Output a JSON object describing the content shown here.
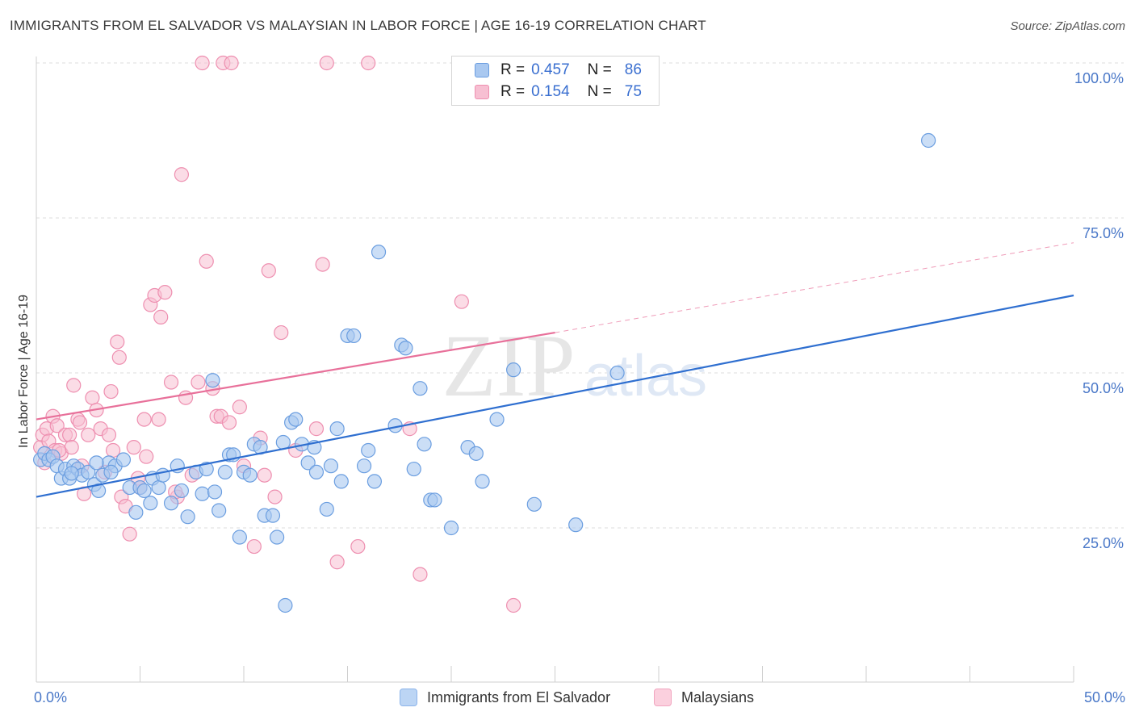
{
  "title": "IMMIGRANTS FROM EL SALVADOR VS MALAYSIAN IN LABOR FORCE | AGE 16-19 CORRELATION CHART",
  "source": "Source: ZipAtlas.com",
  "watermark": {
    "zip": "ZIP",
    "atlas": "atlas"
  },
  "colors": {
    "blue_fill": "#a9c8f0",
    "blue_stroke": "#6b9ee0",
    "blue_line": "#2f6fd0",
    "pink_fill": "#f7bfd2",
    "pink_stroke": "#ee8fb0",
    "pink_line": "#e8709a",
    "grid": "#dcdcdc",
    "axis_text": "#4a78c8"
  },
  "legend": {
    "rows": [
      {
        "r_label": "R =",
        "r_value": "0.457",
        "n_label": "N =",
        "n_value": "86",
        "color": "blue"
      },
      {
        "r_label": "R =",
        "r_value": "0.154",
        "n_label": "N =",
        "n_value": "75",
        "color": "pink"
      }
    ]
  },
  "bottom_legend": {
    "series1": "Immigrants from El Salvador",
    "series2": "Malaysians"
  },
  "chart_data": {
    "type": "scatter",
    "title": "IMMIGRANTS FROM EL SALVADOR VS MALAYSIAN IN LABOR FORCE | AGE 16-19 CORRELATION CHART",
    "xlabel": "",
    "ylabel": "In Labor Force | Age 16-19",
    "xlim": [
      0,
      50
    ],
    "ylim": [
      0,
      102
    ],
    "x_ticks": [
      "0.0%",
      "50.0%"
    ],
    "y_ticks": [
      {
        "value": 100,
        "label": "100.0%"
      },
      {
        "value": 75,
        "label": "75.0%"
      },
      {
        "value": 50,
        "label": "50.0%"
      },
      {
        "value": 25,
        "label": "25.0%"
      }
    ],
    "grid": true,
    "legend_position": "top-center",
    "series": [
      {
        "name": "Immigrants from El Salvador",
        "color": "blue",
        "r": 0.457,
        "n": 86,
        "trend": {
          "x0": 0,
          "y0": 30.0,
          "x1": 50,
          "y1": 62.5,
          "dashed_from": null
        },
        "points": [
          [
            0.2,
            36
          ],
          [
            0.4,
            37
          ],
          [
            0.6,
            36
          ],
          [
            0.8,
            36.5
          ],
          [
            1.0,
            35
          ],
          [
            1.2,
            33
          ],
          [
            1.4,
            34.5
          ],
          [
            1.6,
            33
          ],
          [
            1.8,
            35
          ],
          [
            2.0,
            34.5
          ],
          [
            2.2,
            33.5
          ],
          [
            2.5,
            34
          ],
          [
            2.8,
            32
          ],
          [
            3.0,
            31
          ],
          [
            3.2,
            33.5
          ],
          [
            3.5,
            35.5
          ],
          [
            3.8,
            35
          ],
          [
            4.2,
            36
          ],
          [
            4.5,
            31.5
          ],
          [
            4.8,
            27.5
          ],
          [
            5.0,
            31.5
          ],
          [
            5.2,
            31
          ],
          [
            5.6,
            33
          ],
          [
            5.9,
            31.5
          ],
          [
            6.1,
            33.5
          ],
          [
            6.5,
            29
          ],
          [
            6.8,
            35
          ],
          [
            7.0,
            31
          ],
          [
            7.3,
            26.8
          ],
          [
            7.7,
            34
          ],
          [
            8.0,
            30.5
          ],
          [
            8.2,
            34.5
          ],
          [
            8.6,
            30.8
          ],
          [
            8.8,
            27.8
          ],
          [
            9.1,
            34
          ],
          [
            9.3,
            36.8
          ],
          [
            9.5,
            36.8
          ],
          [
            9.8,
            23.5
          ],
          [
            10.0,
            34
          ],
          [
            10.3,
            33.5
          ],
          [
            10.5,
            38.5
          ],
          [
            10.8,
            38
          ],
          [
            11.0,
            27
          ],
          [
            11.4,
            27
          ],
          [
            11.6,
            23.5
          ],
          [
            11.9,
            38.8
          ],
          [
            12.3,
            42
          ],
          [
            12.5,
            42.5
          ],
          [
            12.8,
            38.5
          ],
          [
            13.1,
            35.5
          ],
          [
            13.4,
            38
          ],
          [
            13.5,
            34
          ],
          [
            14.0,
            28
          ],
          [
            14.2,
            35
          ],
          [
            14.5,
            41
          ],
          [
            14.7,
            32.5
          ],
          [
            15.0,
            56
          ],
          [
            15.3,
            56
          ],
          [
            15.8,
            35
          ],
          [
            16.0,
            37.5
          ],
          [
            16.3,
            32.5
          ],
          [
            16.5,
            69.5
          ],
          [
            17.3,
            41.5
          ],
          [
            17.6,
            54.5
          ],
          [
            17.8,
            54
          ],
          [
            18.5,
            47.5
          ],
          [
            18.7,
            38.5
          ],
          [
            19.0,
            29.5
          ],
          [
            19.2,
            29.5
          ],
          [
            20.0,
            25
          ],
          [
            20.8,
            38
          ],
          [
            21.2,
            37
          ],
          [
            21.5,
            32.5
          ],
          [
            22.2,
            42.5
          ],
          [
            23.0,
            50.5
          ],
          [
            24.0,
            28.8
          ],
          [
            26.0,
            25.5
          ],
          [
            28.0,
            50
          ],
          [
            43.0,
            87.5
          ],
          [
            8.5,
            48.8
          ],
          [
            12.0,
            12.5
          ],
          [
            2.9,
            35.5
          ],
          [
            3.6,
            34
          ],
          [
            1.7,
            33.8
          ],
          [
            5.5,
            29
          ],
          [
            18.2,
            34.5
          ]
        ]
      },
      {
        "name": "Malaysians",
        "color": "pink",
        "r": 0.154,
        "n": 75,
        "trend": {
          "x0": 0,
          "y0": 42.5,
          "x1": 25,
          "y1": 56.5,
          "dashed_to": {
            "x": 50,
            "y": 71.0
          }
        },
        "points": [
          [
            0.2,
            38
          ],
          [
            0.3,
            40
          ],
          [
            0.5,
            41
          ],
          [
            0.6,
            39
          ],
          [
            0.8,
            43
          ],
          [
            0.9,
            37.5
          ],
          [
            1.0,
            41.5
          ],
          [
            1.2,
            37
          ],
          [
            1.4,
            40
          ],
          [
            1.6,
            40
          ],
          [
            1.7,
            38
          ],
          [
            1.8,
            48
          ],
          [
            2.0,
            42.5
          ],
          [
            2.2,
            35
          ],
          [
            2.3,
            30.5
          ],
          [
            2.5,
            40
          ],
          [
            2.7,
            46
          ],
          [
            2.9,
            44
          ],
          [
            3.1,
            41
          ],
          [
            3.3,
            34
          ],
          [
            3.5,
            40
          ],
          [
            3.7,
            37.5
          ],
          [
            3.9,
            55
          ],
          [
            4.1,
            30
          ],
          [
            4.3,
            28.5
          ],
          [
            4.5,
            24
          ],
          [
            4.7,
            38
          ],
          [
            4.9,
            33
          ],
          [
            5.2,
            42.5
          ],
          [
            5.3,
            36.5
          ],
          [
            5.5,
            61
          ],
          [
            5.7,
            62.5
          ],
          [
            5.9,
            42.5
          ],
          [
            6.0,
            59
          ],
          [
            6.2,
            63
          ],
          [
            6.5,
            48.5
          ],
          [
            6.8,
            30
          ],
          [
            7.0,
            82
          ],
          [
            7.2,
            46
          ],
          [
            7.5,
            33.5
          ],
          [
            7.8,
            48.5
          ],
          [
            8.0,
            100
          ],
          [
            8.2,
            68
          ],
          [
            8.5,
            47.5
          ],
          [
            8.7,
            43
          ],
          [
            9.0,
            100
          ],
          [
            9.4,
            100
          ],
          [
            9.8,
            44.5
          ],
          [
            10.0,
            35
          ],
          [
            10.5,
            22
          ],
          [
            10.8,
            39.5
          ],
          [
            11.0,
            33.5
          ],
          [
            11.2,
            66.5
          ],
          [
            11.5,
            30
          ],
          [
            11.8,
            56.5
          ],
          [
            12.5,
            37.5
          ],
          [
            13.5,
            41
          ],
          [
            13.8,
            67.5
          ],
          [
            14.0,
            100
          ],
          [
            14.5,
            19.5
          ],
          [
            15.5,
            22
          ],
          [
            16.0,
            100
          ],
          [
            18.0,
            41
          ],
          [
            18.5,
            17.5
          ],
          [
            20.5,
            61.5
          ],
          [
            23.0,
            12.5
          ],
          [
            1.1,
            37.5
          ],
          [
            2.1,
            42
          ],
          [
            4.0,
            52.5
          ],
          [
            3.6,
            47
          ],
          [
            5.0,
            31.5
          ],
          [
            6.7,
            30.8
          ],
          [
            8.9,
            43
          ],
          [
            0.4,
            35.5
          ],
          [
            9.3,
            42
          ]
        ]
      }
    ]
  }
}
